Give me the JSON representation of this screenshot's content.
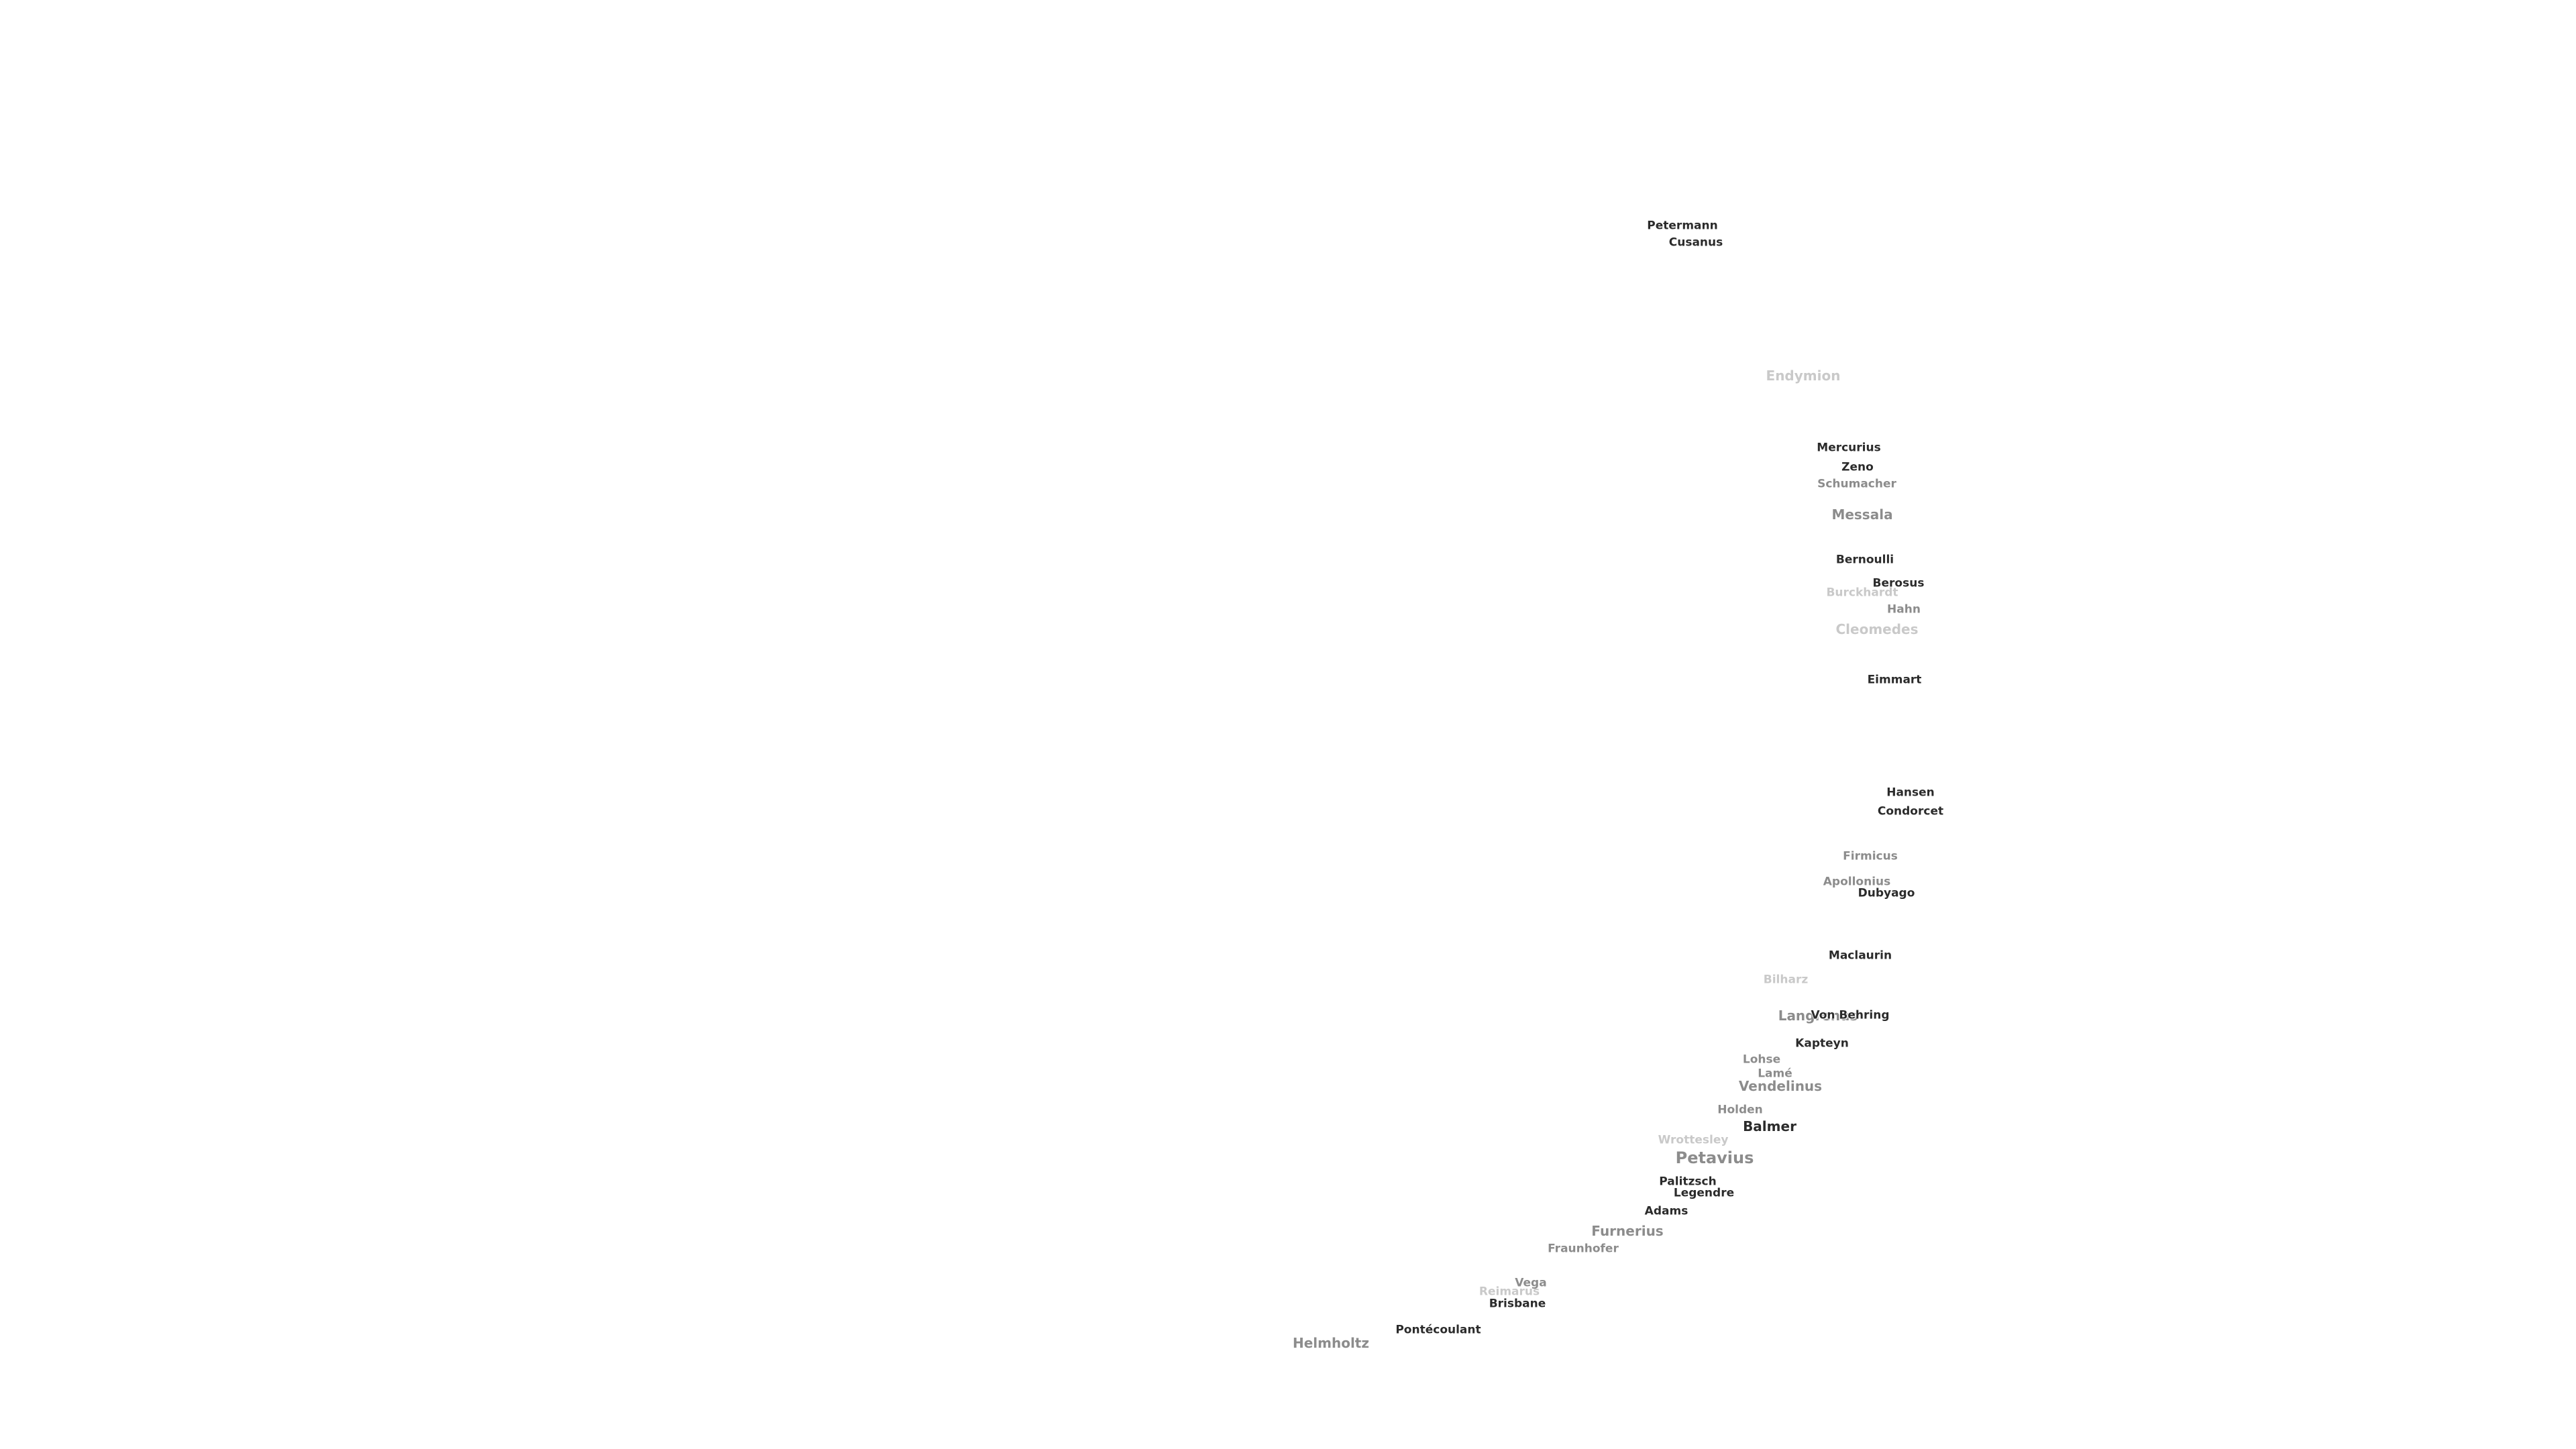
{
  "labels": [
    {
      "id": "petermann",
      "text": "Petermann",
      "style": "dark",
      "size": "small"
    },
    {
      "id": "cusanus",
      "text": "Cusanus",
      "style": "dark",
      "size": "small"
    },
    {
      "id": "endymion",
      "text": "Endymion",
      "style": "faint",
      "size": "medium"
    },
    {
      "id": "mercurius",
      "text": "Mercurius",
      "style": "dark",
      "size": "small"
    },
    {
      "id": "zeno",
      "text": "Zeno",
      "style": "dark",
      "size": "small"
    },
    {
      "id": "schumacher",
      "text": "Schumacher",
      "style": "mid",
      "size": "small"
    },
    {
      "id": "messala",
      "text": "Messala",
      "style": "mid",
      "size": "medium"
    },
    {
      "id": "bernoulli",
      "text": "Bernoulli",
      "style": "dark",
      "size": "small"
    },
    {
      "id": "berosus",
      "text": "Berosus",
      "style": "dark",
      "size": "small"
    },
    {
      "id": "burckhardt",
      "text": "Burckhardt",
      "style": "faint",
      "size": "small"
    },
    {
      "id": "hahn",
      "text": "Hahn",
      "style": "mid",
      "size": "small"
    },
    {
      "id": "cleomedes",
      "text": "Cleomedes",
      "style": "faint",
      "size": "medium"
    },
    {
      "id": "eimmart",
      "text": "Eimmart",
      "style": "dark",
      "size": "small"
    },
    {
      "id": "hansen",
      "text": "Hansen",
      "style": "dark",
      "size": "small"
    },
    {
      "id": "condorcet",
      "text": "Condorcet",
      "style": "dark",
      "size": "small"
    },
    {
      "id": "firmicus",
      "text": "Firmicus",
      "style": "mid",
      "size": "small"
    },
    {
      "id": "apollonius",
      "text": "Apollonius",
      "style": "mid",
      "size": "small"
    },
    {
      "id": "dubyago",
      "text": "Dubyago",
      "style": "dark",
      "size": "small"
    },
    {
      "id": "maclaurin",
      "text": "Maclaurin",
      "style": "dark",
      "size": "small"
    },
    {
      "id": "bilharz",
      "text": "Bilharz",
      "style": "faint",
      "size": "small"
    },
    {
      "id": "langrenus",
      "text": "Langrenus",
      "style": "mid",
      "size": "medium"
    },
    {
      "id": "von-behring",
      "text": "Von Behring",
      "style": "dark",
      "size": "small"
    },
    {
      "id": "kapteyn",
      "text": "Kapteyn",
      "style": "dark",
      "size": "small"
    },
    {
      "id": "lohse",
      "text": "Lohse",
      "style": "mid",
      "size": "small"
    },
    {
      "id": "lame",
      "text": "Lamé",
      "style": "mid",
      "size": "small"
    },
    {
      "id": "vendelinus",
      "text": "Vendelinus",
      "style": "mid",
      "size": "medium"
    },
    {
      "id": "holden",
      "text": "Holden",
      "style": "mid",
      "size": "small"
    },
    {
      "id": "balmer",
      "text": "Balmer",
      "style": "dark",
      "size": "medium"
    },
    {
      "id": "wrottesley",
      "text": "Wrottesley",
      "style": "faint",
      "size": "small"
    },
    {
      "id": "petavius",
      "text": "Petavius",
      "style": "mid",
      "size": "large"
    },
    {
      "id": "palitzsch",
      "text": "Palitzsch",
      "style": "dark",
      "size": "small"
    },
    {
      "id": "legendre",
      "text": "Legendre",
      "style": "dark",
      "size": "small"
    },
    {
      "id": "adams",
      "text": "Adams",
      "style": "dark",
      "size": "small"
    },
    {
      "id": "furnerius",
      "text": "Furnerius",
      "style": "mid",
      "size": "medium"
    },
    {
      "id": "fraunhofer",
      "text": "Fraunhofer",
      "style": "mid",
      "size": "small"
    },
    {
      "id": "vega",
      "text": "Vega",
      "style": "mid",
      "size": "small"
    },
    {
      "id": "reimarus",
      "text": "Reimarus",
      "style": "faint",
      "size": "small"
    },
    {
      "id": "brisbane",
      "text": "Brisbane",
      "style": "dark",
      "size": "small"
    },
    {
      "id": "pontecoulant",
      "text": "Pontécoulant",
      "style": "dark",
      "size": "small"
    },
    {
      "id": "helmholtz",
      "text": "Helmholtz",
      "style": "mid",
      "size": "medium"
    }
  ]
}
